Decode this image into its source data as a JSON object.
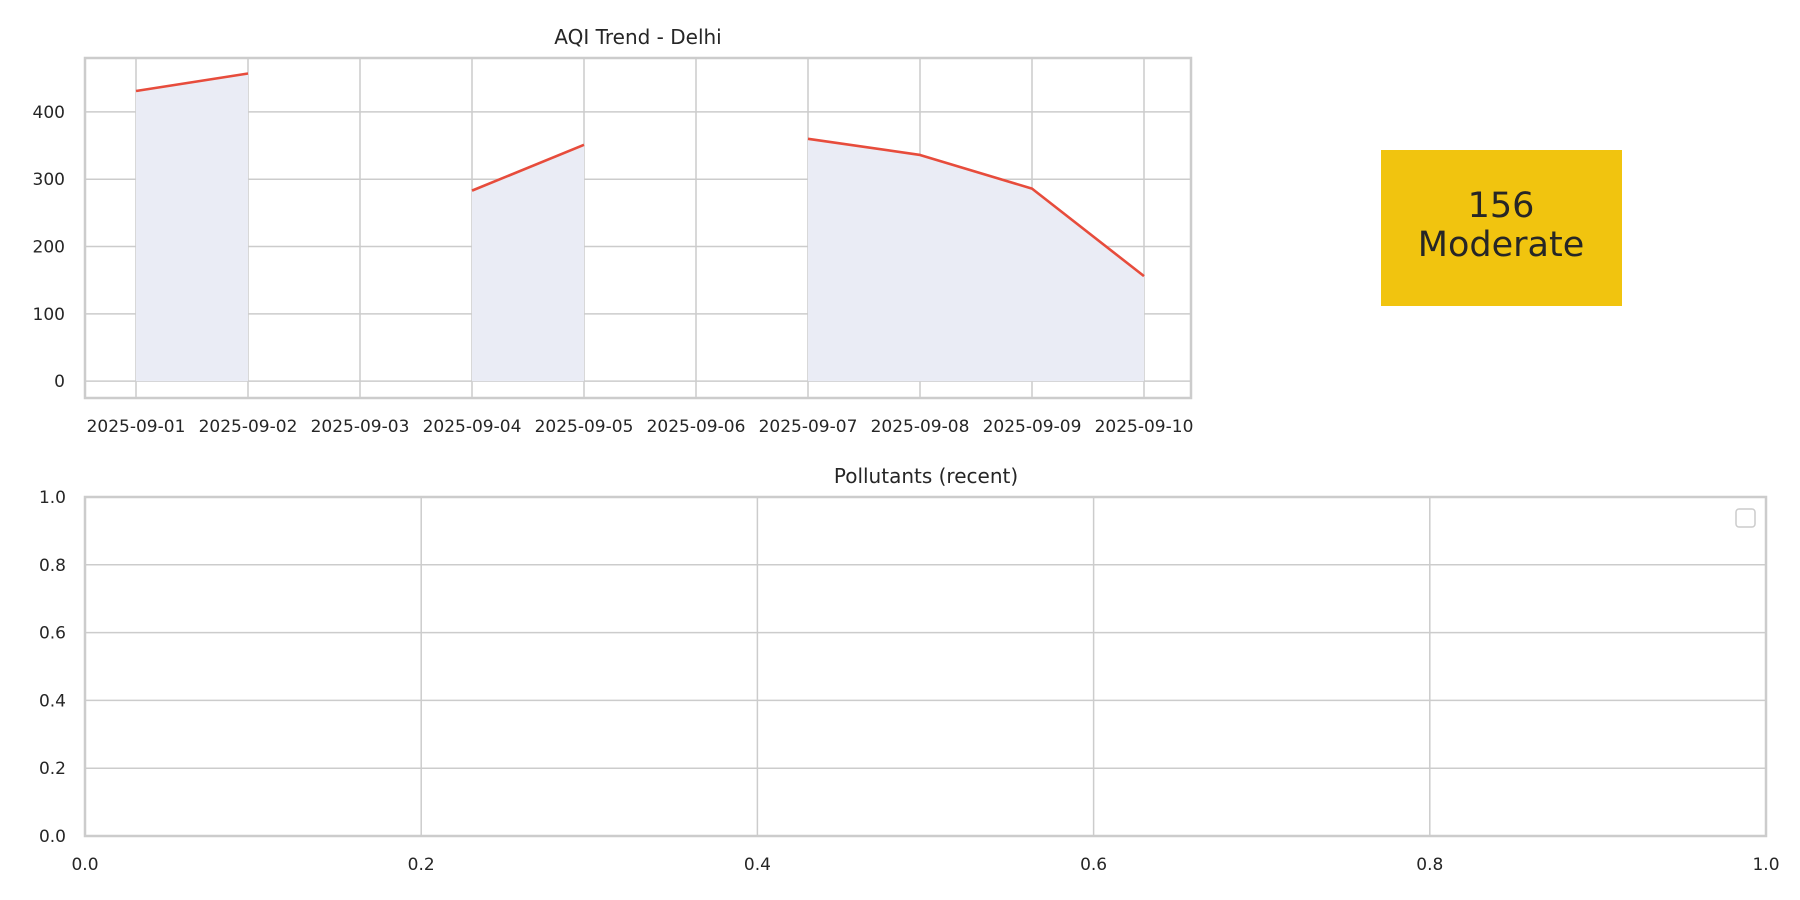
{
  "chart_data": [
    {
      "type": "line",
      "title": "AQI Trend - Delhi",
      "xlabel": "",
      "ylabel": "",
      "x": [
        "2025-09-01",
        "2025-09-02",
        "2025-09-03",
        "2025-09-04",
        "2025-09-05",
        "2025-09-06",
        "2025-09-07",
        "2025-09-08",
        "2025-09-09",
        "2025-09-10"
      ],
      "series": [
        {
          "values": [
            431,
            457,
            null,
            283,
            351,
            null,
            360,
            336,
            286,
            156
          ],
          "color": "#e74c3c",
          "area_fill": "#eaecf5"
        }
      ],
      "ylim": [
        -25,
        480
      ],
      "yticks": [
        0,
        100,
        200,
        300,
        400
      ],
      "grid": true
    },
    {
      "type": "bar",
      "title": "Pollutants (recent)",
      "xlabel": "",
      "ylabel": "",
      "categories": [],
      "series": [],
      "xlim": [
        0.0,
        1.0
      ],
      "ylim": [
        0.0,
        1.0
      ],
      "xticks": [
        "0.0",
        "0.2",
        "0.4",
        "0.6",
        "0.8",
        "1.0"
      ],
      "yticks": [
        "0.0",
        "0.2",
        "0.4",
        "0.6",
        "0.8",
        "1.0"
      ],
      "legend": "top-right",
      "grid": true
    }
  ],
  "aqi_badge": {
    "value": "156",
    "category": "Moderate",
    "color": "#f1c40f"
  }
}
